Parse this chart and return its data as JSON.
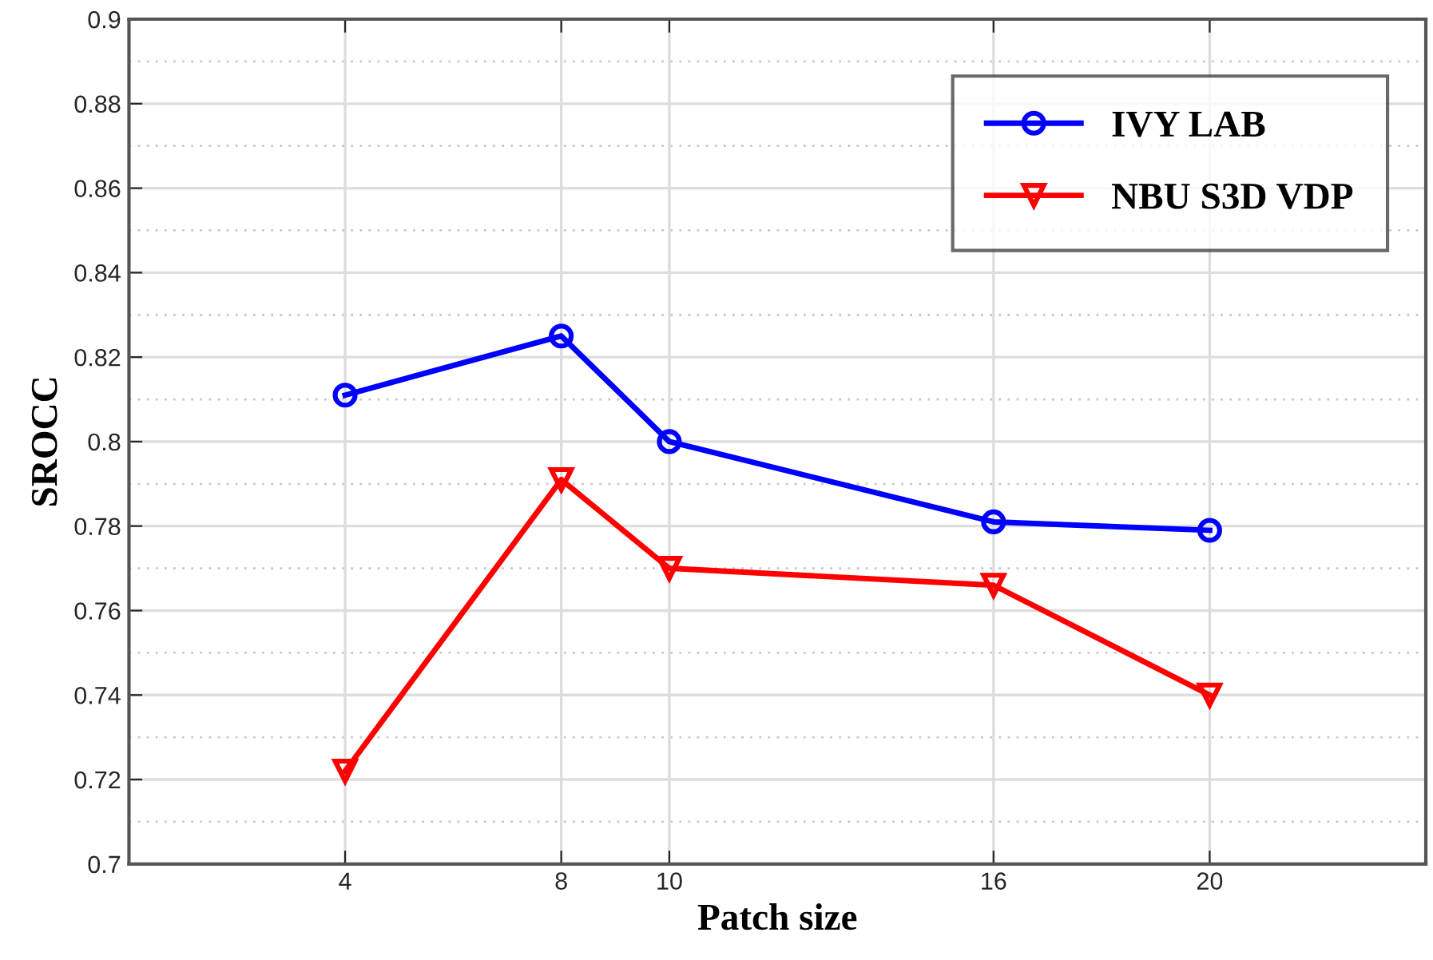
{
  "chart_data": {
    "type": "line",
    "xlabel": "Patch size",
    "ylabel": "SROCC",
    "x": [
      4,
      8,
      10,
      16,
      20
    ],
    "series": [
      {
        "name": "IVY LAB",
        "color": "#0000ff",
        "marker": "circle",
        "values": [
          0.811,
          0.825,
          0.8,
          0.781,
          0.779
        ]
      },
      {
        "name": "NBU S3D VDP",
        "color": "#ff0000",
        "marker": "triangle",
        "values": [
          0.722,
          0.791,
          0.77,
          0.766,
          0.74
        ]
      }
    ],
    "xlim": [
      0,
      24
    ],
    "xticks": [
      4,
      8,
      10,
      16,
      20
    ],
    "ylim": [
      0.7,
      0.9
    ],
    "yticks": [
      0.7,
      0.72,
      0.74,
      0.76,
      0.78,
      0.8,
      0.82,
      0.84,
      0.86,
      0.88,
      0.9
    ],
    "grid": true,
    "legend": "top right",
    "line_style": "solid"
  }
}
